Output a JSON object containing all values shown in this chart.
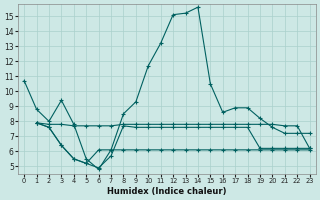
{
  "xlabel": "Humidex (Indice chaleur)",
  "xlim": [
    -0.5,
    23.5
  ],
  "ylim": [
    4.5,
    15.8
  ],
  "yticks": [
    5,
    6,
    7,
    8,
    9,
    10,
    11,
    12,
    13,
    14,
    15
  ],
  "xticks": [
    0,
    1,
    2,
    3,
    4,
    5,
    6,
    7,
    8,
    9,
    10,
    11,
    12,
    13,
    14,
    15,
    16,
    17,
    18,
    19,
    20,
    21,
    22,
    23
  ],
  "bg_color": "#cde8e5",
  "line_color": "#006060",
  "grid_color": "#aad0cc",
  "lines": [
    {
      "x": [
        0,
        1,
        2,
        3,
        4,
        5,
        6,
        7,
        8,
        9,
        10,
        11,
        12,
        13,
        14,
        15,
        16,
        17,
        18,
        19,
        20,
        21,
        22,
        23
      ],
      "y": [
        10.7,
        8.8,
        8.0,
        9.4,
        7.8,
        5.5,
        4.8,
        6.1,
        8.5,
        9.3,
        11.7,
        13.2,
        15.1,
        15.2,
        15.6,
        10.5,
        8.6,
        8.9,
        8.9,
        8.2,
        7.6,
        7.2,
        7.2,
        7.2
      ]
    },
    {
      "x": [
        1,
        2,
        3,
        4,
        5,
        6,
        7,
        8,
        9,
        10,
        11,
        12,
        13,
        14,
        15,
        16,
        17,
        18,
        19,
        20,
        21,
        22,
        23
      ],
      "y": [
        7.9,
        7.8,
        7.8,
        7.7,
        7.7,
        7.7,
        7.7,
        7.8,
        7.8,
        7.8,
        7.8,
        7.8,
        7.8,
        7.8,
        7.8,
        7.8,
        7.8,
        7.8,
        7.8,
        7.8,
        7.7,
        7.7,
        6.2
      ]
    },
    {
      "x": [
        1,
        2,
        3,
        4,
        5,
        6,
        7,
        8,
        9,
        10,
        11,
        12,
        13,
        14,
        15,
        16,
        17,
        18,
        19,
        20,
        21,
        22,
        23
      ],
      "y": [
        7.9,
        7.6,
        6.4,
        5.5,
        5.2,
        4.9,
        5.7,
        7.7,
        7.6,
        7.6,
        7.6,
        7.6,
        7.6,
        7.6,
        7.6,
        7.6,
        7.6,
        7.6,
        6.2,
        6.2,
        6.2,
        6.2,
        6.2
      ]
    },
    {
      "x": [
        1,
        2,
        3,
        4,
        5,
        6,
        7,
        8,
        9,
        10,
        11,
        12,
        13,
        14,
        15,
        16,
        17,
        18,
        19,
        20,
        21,
        22,
        23
      ],
      "y": [
        7.9,
        7.6,
        6.4,
        5.5,
        5.2,
        6.1,
        6.1,
        6.1,
        6.1,
        6.1,
        6.1,
        6.1,
        6.1,
        6.1,
        6.1,
        6.1,
        6.1,
        6.1,
        6.1,
        6.1,
        6.1,
        6.1,
        6.1
      ]
    }
  ]
}
